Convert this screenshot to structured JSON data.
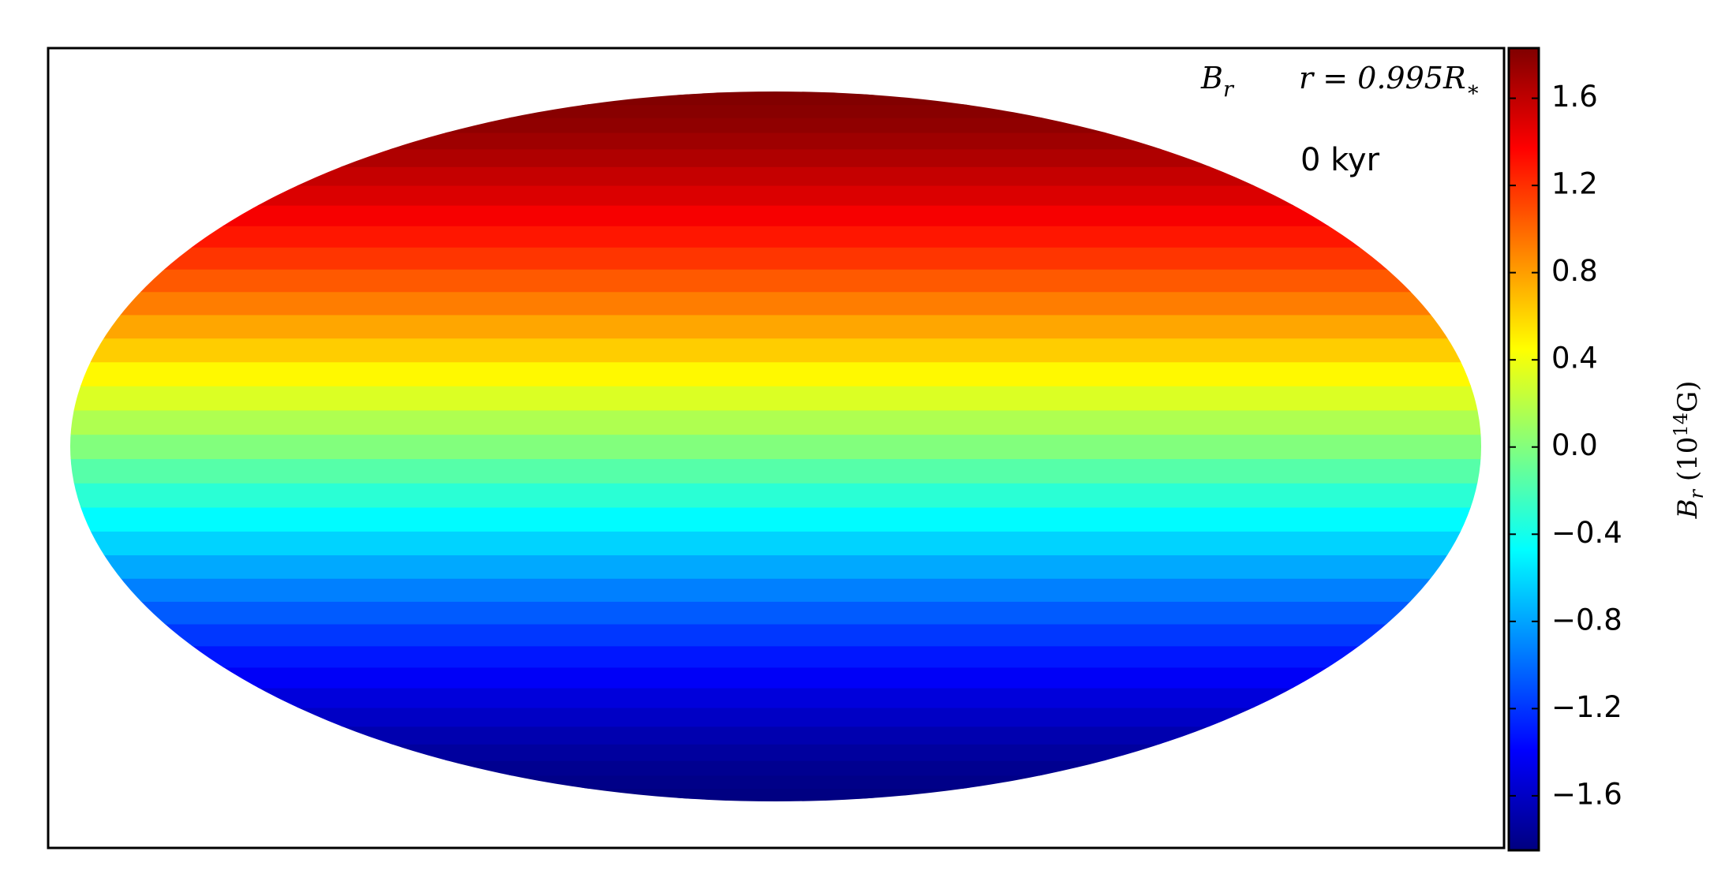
{
  "chart_data": {
    "type": "map",
    "projection": "mollweide",
    "colormap": "jet",
    "lat": [
      -90,
      -85,
      -80,
      -75,
      -70,
      -65,
      -60,
      -55,
      -50,
      -45,
      -40,
      -35,
      -30,
      -25,
      -20,
      -15,
      -10,
      -5,
      0,
      5,
      10,
      15,
      20,
      25,
      30,
      35,
      40,
      45,
      50,
      55,
      60,
      65,
      70,
      75,
      80,
      85,
      90
    ],
    "values": [
      -1.85,
      -1.84,
      -1.82,
      -1.79,
      -1.74,
      -1.68,
      -1.6,
      -1.52,
      -1.42,
      -1.31,
      -1.19,
      -1.06,
      -0.93,
      -0.78,
      -0.63,
      -0.48,
      -0.32,
      -0.16,
      0,
      0.16,
      0.32,
      0.47,
      0.63,
      0.77,
      0.92,
      1.05,
      1.18,
      1.29,
      1.4,
      1.5,
      1.58,
      1.66,
      1.72,
      1.77,
      1.8,
      1.82,
      1.83
    ],
    "field_label": {
      "base": "B",
      "sub": "r"
    },
    "radius_label": {
      "base": "r = 0.995R",
      "sub": "∗"
    },
    "time_label": "0 kyr",
    "colorbar": {
      "lim": [
        -1.85,
        1.83
      ],
      "ticks": [
        {
          "value": -1.6,
          "label": "−1.6"
        },
        {
          "value": -1.2,
          "label": "−1.2"
        },
        {
          "value": -0.8,
          "label": "−0.8"
        },
        {
          "value": -0.4,
          "label": "−0.4"
        },
        {
          "value": 0,
          "label": "0.0"
        },
        0.4,
        0.8,
        1.2,
        1.6
      ],
      "label": {
        "base": "B",
        "sub": "r",
        "open": " (10",
        "sup": "14",
        "unit": "G)"
      }
    }
  }
}
